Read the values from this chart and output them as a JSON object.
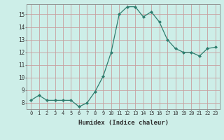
{
  "x": [
    0,
    1,
    2,
    3,
    4,
    5,
    6,
    7,
    8,
    9,
    10,
    11,
    12,
    13,
    14,
    15,
    16,
    17,
    18,
    19,
    20,
    21,
    22,
    23
  ],
  "y": [
    8.2,
    8.6,
    8.2,
    8.2,
    8.2,
    8.2,
    7.7,
    8.0,
    8.9,
    10.1,
    12.0,
    15.0,
    15.6,
    15.6,
    14.8,
    15.2,
    14.4,
    13.0,
    12.3,
    12.0,
    12.0,
    11.7,
    12.3,
    12.4
  ],
  "line_color": "#2e7d6e",
  "marker": "D",
  "marker_size": 2.0,
  "bg_color": "#cdeee8",
  "grid_color": "#c8a0a0",
  "xlabel": "Humidex (Indice chaleur)",
  "xlim": [
    -0.5,
    23.5
  ],
  "ylim": [
    7.5,
    15.8
  ],
  "yticks": [
    8,
    9,
    10,
    11,
    12,
    13,
    14,
    15
  ],
  "xticks": [
    0,
    1,
    2,
    3,
    4,
    5,
    6,
    7,
    8,
    9,
    10,
    11,
    12,
    13,
    14,
    15,
    16,
    17,
    18,
    19,
    20,
    21,
    22,
    23
  ]
}
